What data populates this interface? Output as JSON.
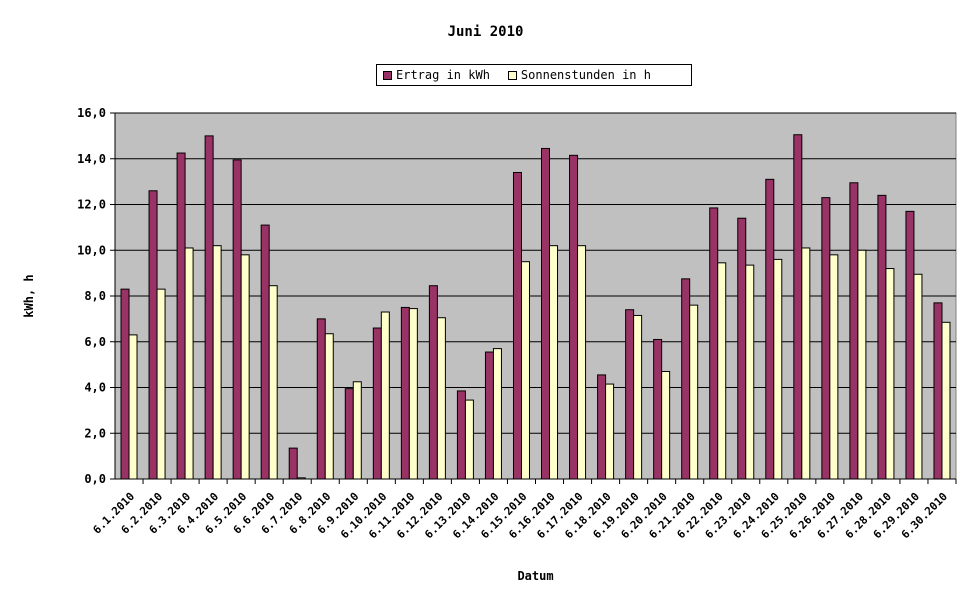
{
  "chart_data": {
    "type": "bar",
    "title": "Juni 2010",
    "xlabel": "Datum",
    "ylabel": "kWh, h",
    "ylim": [
      0,
      16
    ],
    "yticks": [
      "0,0",
      "2,0",
      "4,0",
      "6,0",
      "8,0",
      "10,0",
      "12,0",
      "14,0",
      "16,0"
    ],
    "grid": true,
    "legend_position": "top",
    "categories": [
      "6.1.2010",
      "6.2.2010",
      "6.3.2010",
      "6.4.2010",
      "6.5.2010",
      "6.6.2010",
      "6.7.2010",
      "6.8.2010",
      "6.9.2010",
      "6.10.2010",
      "6.11.2010",
      "6.12.2010",
      "6.13.2010",
      "6.14.2010",
      "6.15.2010",
      "6.16.2010",
      "6.17.2010",
      "6.18.2010",
      "6.19.2010",
      "6.20.2010",
      "6.21.2010",
      "6.22.2010",
      "6.23.2010",
      "6.24.2010",
      "6.25.2010",
      "6.26.2010",
      "6.27.2010",
      "6.28.2010",
      "6.29.2010",
      "6.30.2010"
    ],
    "series": [
      {
        "name": "Ertrag in kWh",
        "color": "#993366",
        "values": [
          8.3,
          12.6,
          14.25,
          15.0,
          13.95,
          11.1,
          1.35,
          7.0,
          3.95,
          6.6,
          7.5,
          8.45,
          3.85,
          5.55,
          13.4,
          14.45,
          14.15,
          4.55,
          7.4,
          6.1,
          8.75,
          11.85,
          11.4,
          13.1,
          15.05,
          12.3,
          12.95,
          12.4,
          11.7,
          7.7
        ]
      },
      {
        "name": "Sonnenstunden in h",
        "color": "#FFFFCC",
        "values": [
          6.3,
          8.3,
          10.1,
          10.2,
          9.8,
          8.45,
          0.05,
          6.35,
          4.25,
          7.3,
          7.45,
          7.05,
          3.45,
          5.7,
          9.5,
          10.2,
          10.2,
          4.15,
          7.15,
          4.7,
          7.6,
          9.45,
          9.35,
          9.6,
          10.1,
          9.8,
          10.0,
          9.2,
          8.95,
          6.85
        ]
      }
    ]
  }
}
